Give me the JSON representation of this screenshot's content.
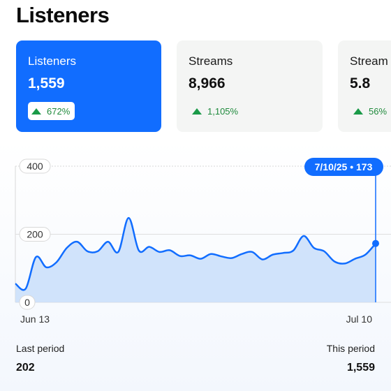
{
  "page": {
    "title": "Listeners"
  },
  "cards": [
    {
      "label": "Listeners",
      "value": "1,559",
      "delta": "672%",
      "active": true
    },
    {
      "label": "Streams",
      "value": "8,966",
      "delta": "1,105%",
      "active": false
    },
    {
      "label": "Stream",
      "value": "5.8",
      "delta": "56%",
      "active": false
    }
  ],
  "chart_data": {
    "type": "area",
    "y_ticks": [
      "400",
      "200",
      "0"
    ],
    "ylim": [
      0,
      400
    ],
    "x_tick_labels": [
      "Jun 13",
      "Jul 10"
    ],
    "y": [
      55,
      40,
      133,
      103,
      118,
      160,
      178,
      150,
      150,
      178,
      148,
      248,
      152,
      163,
      148,
      153,
      136,
      138,
      128,
      142,
      135,
      130,
      142,
      148,
      126,
      140,
      145,
      152,
      195,
      160,
      150,
      120,
      114,
      128,
      140,
      173
    ],
    "tooltip": {
      "date": "7/10/25",
      "value": "173"
    },
    "accent": "#116dff",
    "fill": "#c9defa"
  },
  "footer": {
    "last_label": "Last period",
    "last_value": "202",
    "this_label": "This period",
    "this_value": "1,559"
  }
}
